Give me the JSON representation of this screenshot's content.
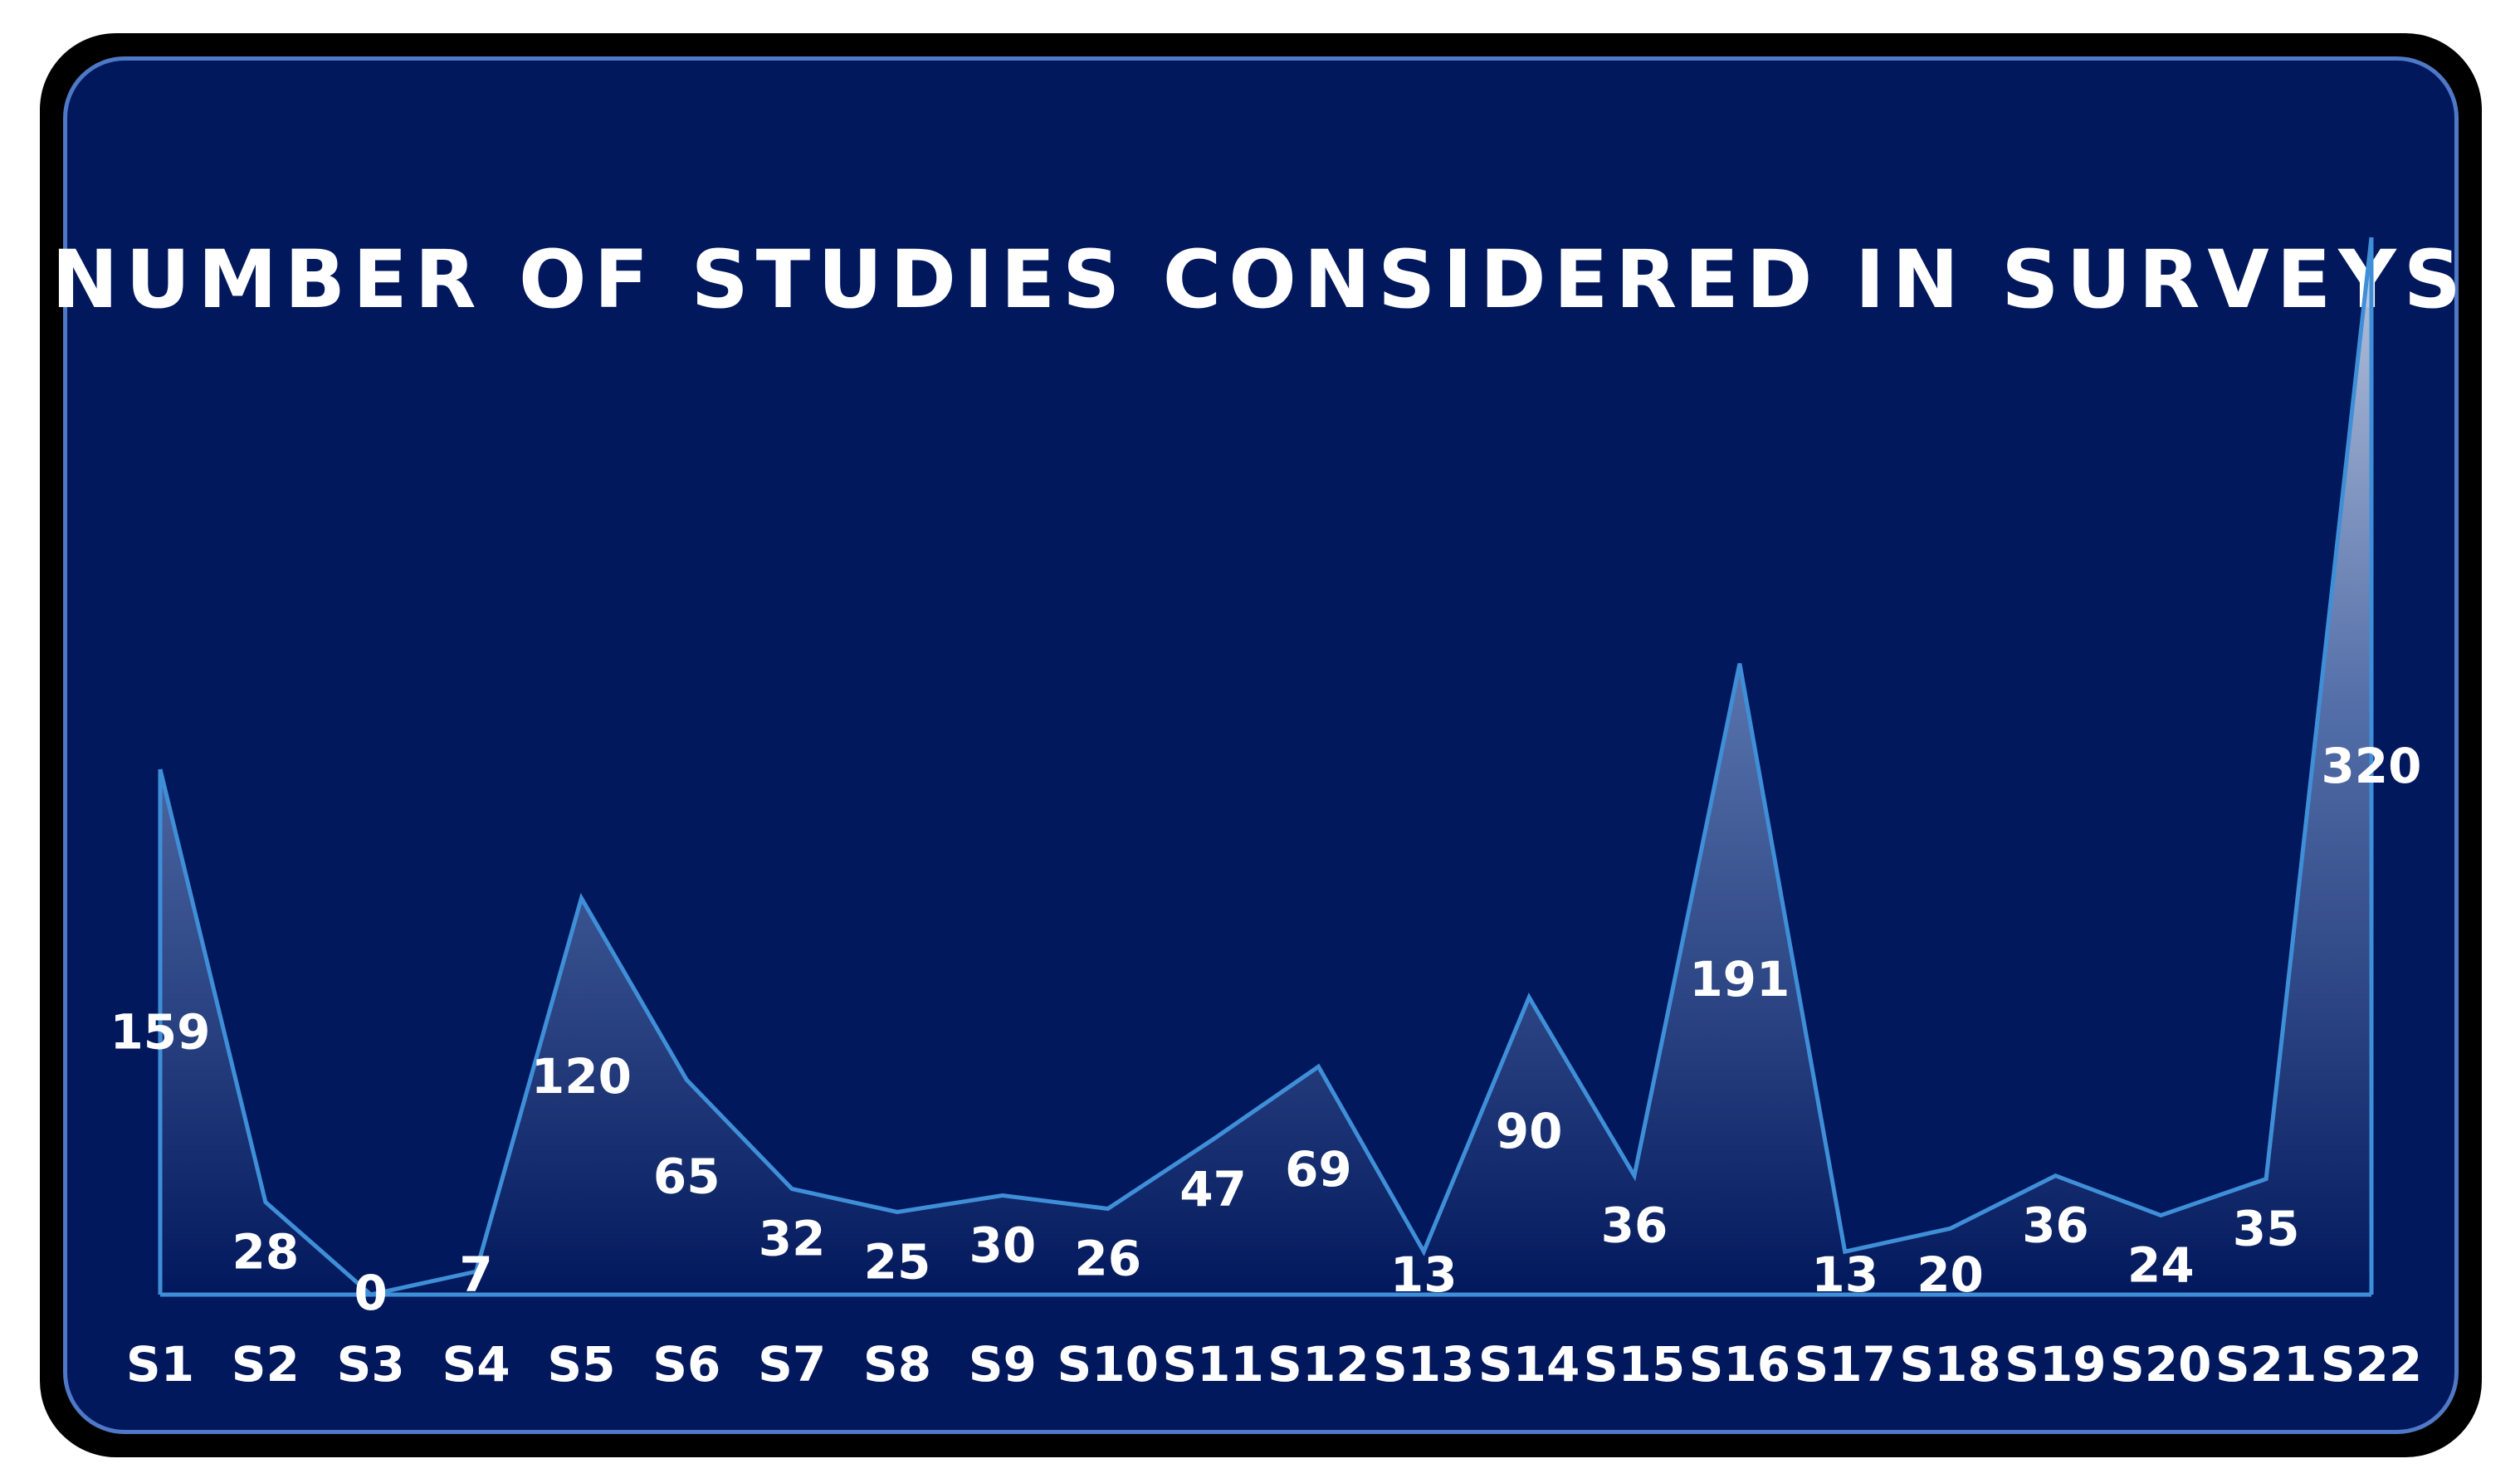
{
  "chart_data": {
    "type": "area",
    "title": "NUMBER OF STUDIES CONSIDERED IN SURVEYS",
    "categories": [
      "S1",
      "S2",
      "S3",
      "S4",
      "S5",
      "S6",
      "S7",
      "S8",
      "S9",
      "S10",
      "S11",
      "S12",
      "S13",
      "S14",
      "S15",
      "S16",
      "S17",
      "S18",
      "S19",
      "S20",
      "S21",
      "S22"
    ],
    "series": [
      {
        "values": [
          159,
          28,
          0,
          7,
          120,
          65,
          32,
          25,
          30,
          26,
          47,
          69,
          13,
          90,
          36,
          191,
          13,
          20,
          36,
          24,
          35,
          320
        ]
      }
    ],
    "ylim": [
      0,
      320
    ],
    "grid": false,
    "legend": "none"
  },
  "colors": {
    "background": "#02185c",
    "frame": "#000000",
    "frame_border": "#4f78c6",
    "line": "#3f8fd8",
    "area_top": "#c4d0e6",
    "area_bottom": "#02185c",
    "text": "#ffffff"
  }
}
